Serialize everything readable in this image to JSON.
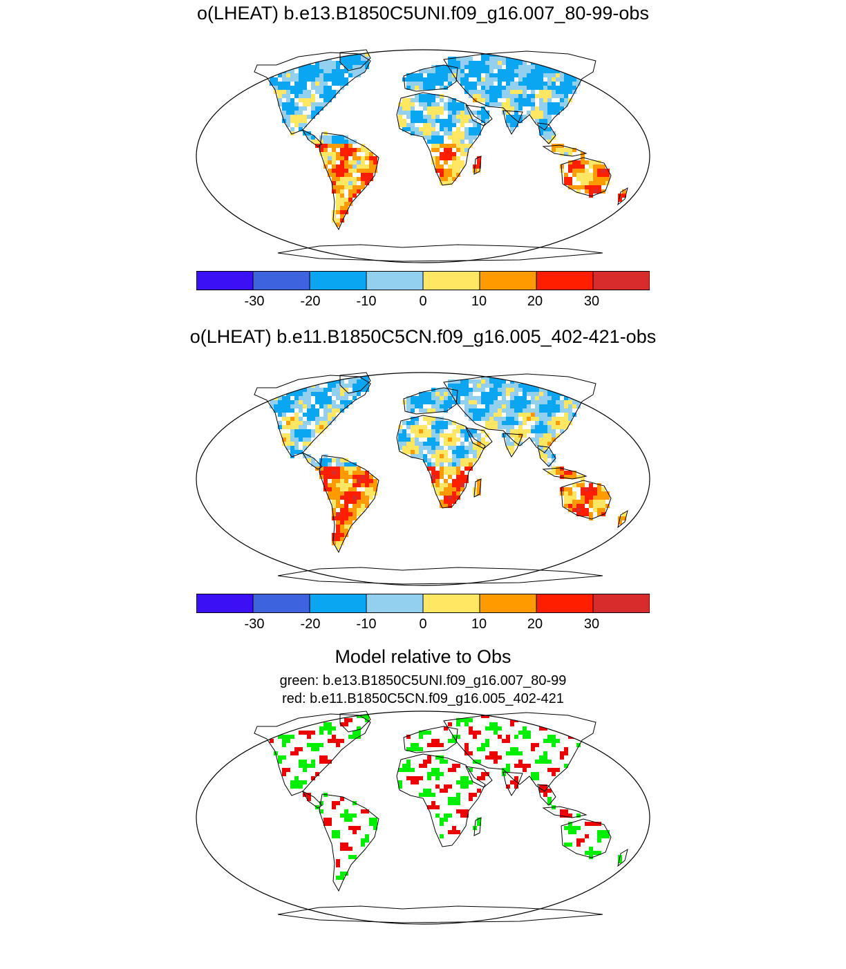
{
  "panels": [
    {
      "title": "o(LHEAT) b.e13.B1850C5UNI.f09_g16.007_80-99-obs",
      "palette": [
        "#3b10f5",
        "#3e63df",
        "#0aa6f2",
        "#93cfef",
        "#ffe763",
        "#ff9b00",
        "#ff1e00",
        "#d82b2b"
      ],
      "tick_labels": [
        "-30",
        "-20",
        "-10",
        "0",
        "10",
        "20",
        "30"
      ]
    },
    {
      "title": "o(LHEAT) b.e11.B1850C5CN.f09_g16.005_402-421-obs",
      "palette": [
        "#3b10f5",
        "#3e63df",
        "#0aa6f2",
        "#93cfef",
        "#ffe763",
        "#ff9b00",
        "#ff1e00",
        "#d82b2b"
      ],
      "tick_labels": [
        "-30",
        "-20",
        "-10",
        "0",
        "10",
        "20",
        "30"
      ]
    }
  ],
  "comparison": {
    "title": "Model relative to Obs",
    "green_label": "green: b.e13.B1850C5UNI.f09_g16.007_80-99",
    "red_label": "red: b.e11.B1850C5CN.f09_g16.005_402-421",
    "colors": {
      "green": "#00ee00",
      "red": "#ee0000"
    }
  }
}
